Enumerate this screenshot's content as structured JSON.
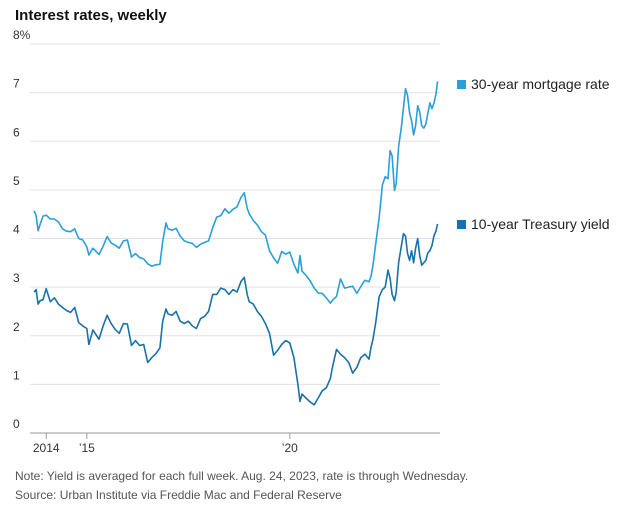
{
  "chart_data": {
    "type": "line",
    "title": "Interest rates, weekly",
    "xlabel": "",
    "ylabel": "",
    "ylim": [
      0,
      8
    ],
    "xlim": [
      2013.6,
      2023.7
    ],
    "grid": true,
    "legend": "right",
    "y_ticks": [
      {
        "value": 0,
        "label": "0"
      },
      {
        "value": 1,
        "label": "1"
      },
      {
        "value": 2,
        "label": "2"
      },
      {
        "value": 3,
        "label": "3"
      },
      {
        "value": 4,
        "label": "4"
      },
      {
        "value": 5,
        "label": "5"
      },
      {
        "value": 6,
        "label": "6"
      },
      {
        "value": 7,
        "label": "7"
      },
      {
        "value": 8,
        "label": "8%"
      }
    ],
    "x_ticks": [
      {
        "value": 2014,
        "label": "2014"
      },
      {
        "value": 2015,
        "label": "’15"
      },
      {
        "value": 2020,
        "label": "’20"
      }
    ],
    "series": [
      {
        "name": "30-year mortgage rate",
        "color": "#2a9fd8",
        "points": [
          [
            2013.7,
            4.57
          ],
          [
            2013.75,
            4.47
          ],
          [
            2013.8,
            4.16
          ],
          [
            2013.85,
            4.29
          ],
          [
            2013.92,
            4.46
          ],
          [
            2014.0,
            4.48
          ],
          [
            2014.1,
            4.4
          ],
          [
            2014.2,
            4.4
          ],
          [
            2014.3,
            4.34
          ],
          [
            2014.4,
            4.2
          ],
          [
            2014.5,
            4.15
          ],
          [
            2014.6,
            4.14
          ],
          [
            2014.7,
            4.2
          ],
          [
            2014.8,
            4.0
          ],
          [
            2014.9,
            3.97
          ],
          [
            2015.0,
            3.83
          ],
          [
            2015.05,
            3.66
          ],
          [
            2015.15,
            3.8
          ],
          [
            2015.3,
            3.67
          ],
          [
            2015.4,
            3.84
          ],
          [
            2015.5,
            4.04
          ],
          [
            2015.6,
            3.91
          ],
          [
            2015.7,
            3.86
          ],
          [
            2015.8,
            3.8
          ],
          [
            2015.9,
            3.95
          ],
          [
            2016.0,
            3.97
          ],
          [
            2016.1,
            3.62
          ],
          [
            2016.2,
            3.69
          ],
          [
            2016.3,
            3.61
          ],
          [
            2016.4,
            3.58
          ],
          [
            2016.5,
            3.48
          ],
          [
            2016.6,
            3.43
          ],
          [
            2016.7,
            3.46
          ],
          [
            2016.8,
            3.47
          ],
          [
            2016.87,
            3.94
          ],
          [
            2016.95,
            4.32
          ],
          [
            2017.0,
            4.2
          ],
          [
            2017.1,
            4.17
          ],
          [
            2017.2,
            4.21
          ],
          [
            2017.3,
            4.05
          ],
          [
            2017.4,
            3.95
          ],
          [
            2017.5,
            3.92
          ],
          [
            2017.6,
            3.9
          ],
          [
            2017.7,
            3.82
          ],
          [
            2017.8,
            3.88
          ],
          [
            2017.9,
            3.92
          ],
          [
            2018.0,
            3.95
          ],
          [
            2018.1,
            4.22
          ],
          [
            2018.2,
            4.44
          ],
          [
            2018.3,
            4.47
          ],
          [
            2018.4,
            4.61
          ],
          [
            2018.5,
            4.52
          ],
          [
            2018.6,
            4.6
          ],
          [
            2018.7,
            4.65
          ],
          [
            2018.8,
            4.85
          ],
          [
            2018.88,
            4.94
          ],
          [
            2018.95,
            4.62
          ],
          [
            2019.0,
            4.51
          ],
          [
            2019.1,
            4.37
          ],
          [
            2019.2,
            4.28
          ],
          [
            2019.3,
            4.14
          ],
          [
            2019.4,
            4.07
          ],
          [
            2019.5,
            3.75
          ],
          [
            2019.6,
            3.6
          ],
          [
            2019.7,
            3.49
          ],
          [
            2019.8,
            3.73
          ],
          [
            2019.9,
            3.68
          ],
          [
            2020.0,
            3.72
          ],
          [
            2020.1,
            3.47
          ],
          [
            2020.2,
            3.29
          ],
          [
            2020.25,
            3.65
          ],
          [
            2020.3,
            3.33
          ],
          [
            2020.4,
            3.24
          ],
          [
            2020.5,
            3.13
          ],
          [
            2020.6,
            2.98
          ],
          [
            2020.7,
            2.88
          ],
          [
            2020.8,
            2.87
          ],
          [
            2020.9,
            2.78
          ],
          [
            2021.0,
            2.67
          ],
          [
            2021.05,
            2.73
          ],
          [
            2021.15,
            2.81
          ],
          [
            2021.25,
            3.17
          ],
          [
            2021.35,
            2.98
          ],
          [
            2021.45,
            3.0
          ],
          [
            2021.55,
            3.02
          ],
          [
            2021.65,
            2.87
          ],
          [
            2021.75,
            3.01
          ],
          [
            2021.85,
            3.14
          ],
          [
            2021.95,
            3.11
          ],
          [
            2022.0,
            3.22
          ],
          [
            2022.05,
            3.45
          ],
          [
            2022.12,
            3.92
          ],
          [
            2022.2,
            4.42
          ],
          [
            2022.28,
            5.1
          ],
          [
            2022.35,
            5.27
          ],
          [
            2022.42,
            5.23
          ],
          [
            2022.47,
            5.81
          ],
          [
            2022.52,
            5.7
          ],
          [
            2022.58,
            4.99
          ],
          [
            2022.62,
            5.13
          ],
          [
            2022.68,
            5.89
          ],
          [
            2022.75,
            6.29
          ],
          [
            2022.8,
            6.7
          ],
          [
            2022.85,
            7.08
          ],
          [
            2022.9,
            6.95
          ],
          [
            2022.95,
            6.58
          ],
          [
            2023.0,
            6.42
          ],
          [
            2023.05,
            6.13
          ],
          [
            2023.1,
            6.32
          ],
          [
            2023.15,
            6.73
          ],
          [
            2023.2,
            6.6
          ],
          [
            2023.25,
            6.32
          ],
          [
            2023.3,
            6.27
          ],
          [
            2023.35,
            6.35
          ],
          [
            2023.4,
            6.57
          ],
          [
            2023.45,
            6.79
          ],
          [
            2023.5,
            6.67
          ],
          [
            2023.55,
            6.78
          ],
          [
            2023.6,
            6.96
          ],
          [
            2023.64,
            7.23
          ]
        ]
      },
      {
        "name": "10-year Treasury yield",
        "color": "#1872a8",
        "points": [
          [
            2013.7,
            2.9
          ],
          [
            2013.75,
            2.95
          ],
          [
            2013.8,
            2.65
          ],
          [
            2013.85,
            2.72
          ],
          [
            2013.92,
            2.74
          ],
          [
            2014.0,
            2.97
          ],
          [
            2014.1,
            2.7
          ],
          [
            2014.2,
            2.78
          ],
          [
            2014.3,
            2.65
          ],
          [
            2014.4,
            2.58
          ],
          [
            2014.5,
            2.52
          ],
          [
            2014.6,
            2.48
          ],
          [
            2014.7,
            2.58
          ],
          [
            2014.8,
            2.27
          ],
          [
            2014.9,
            2.2
          ],
          [
            2015.0,
            2.15
          ],
          [
            2015.05,
            1.82
          ],
          [
            2015.15,
            2.12
          ],
          [
            2015.3,
            1.93
          ],
          [
            2015.4,
            2.2
          ],
          [
            2015.5,
            2.42
          ],
          [
            2015.6,
            2.25
          ],
          [
            2015.7,
            2.13
          ],
          [
            2015.8,
            2.05
          ],
          [
            2015.9,
            2.25
          ],
          [
            2016.0,
            2.24
          ],
          [
            2016.1,
            1.8
          ],
          [
            2016.2,
            1.9
          ],
          [
            2016.3,
            1.8
          ],
          [
            2016.4,
            1.82
          ],
          [
            2016.5,
            1.45
          ],
          [
            2016.6,
            1.55
          ],
          [
            2016.7,
            1.63
          ],
          [
            2016.8,
            1.75
          ],
          [
            2016.87,
            2.3
          ],
          [
            2016.95,
            2.55
          ],
          [
            2017.0,
            2.45
          ],
          [
            2017.1,
            2.42
          ],
          [
            2017.2,
            2.5
          ],
          [
            2017.3,
            2.3
          ],
          [
            2017.4,
            2.25
          ],
          [
            2017.5,
            2.3
          ],
          [
            2017.6,
            2.2
          ],
          [
            2017.7,
            2.15
          ],
          [
            2017.8,
            2.35
          ],
          [
            2017.9,
            2.4
          ],
          [
            2018.0,
            2.5
          ],
          [
            2018.1,
            2.85
          ],
          [
            2018.2,
            2.85
          ],
          [
            2018.3,
            2.98
          ],
          [
            2018.4,
            2.95
          ],
          [
            2018.5,
            2.85
          ],
          [
            2018.6,
            2.95
          ],
          [
            2018.7,
            2.9
          ],
          [
            2018.8,
            3.12
          ],
          [
            2018.88,
            3.2
          ],
          [
            2018.95,
            2.85
          ],
          [
            2019.0,
            2.7
          ],
          [
            2019.1,
            2.65
          ],
          [
            2019.2,
            2.5
          ],
          [
            2019.3,
            2.4
          ],
          [
            2019.4,
            2.25
          ],
          [
            2019.5,
            2.05
          ],
          [
            2019.6,
            1.6
          ],
          [
            2019.7,
            1.7
          ],
          [
            2019.8,
            1.82
          ],
          [
            2019.9,
            1.9
          ],
          [
            2020.0,
            1.85
          ],
          [
            2020.1,
            1.55
          ],
          [
            2020.2,
            1.0
          ],
          [
            2020.25,
            0.65
          ],
          [
            2020.3,
            0.8
          ],
          [
            2020.4,
            0.72
          ],
          [
            2020.5,
            0.64
          ],
          [
            2020.6,
            0.58
          ],
          [
            2020.7,
            0.72
          ],
          [
            2020.8,
            0.87
          ],
          [
            2020.9,
            0.93
          ],
          [
            2021.0,
            1.12
          ],
          [
            2021.05,
            1.35
          ],
          [
            2021.15,
            1.72
          ],
          [
            2021.25,
            1.62
          ],
          [
            2021.35,
            1.55
          ],
          [
            2021.45,
            1.45
          ],
          [
            2021.55,
            1.23
          ],
          [
            2021.65,
            1.35
          ],
          [
            2021.75,
            1.55
          ],
          [
            2021.85,
            1.62
          ],
          [
            2021.95,
            1.52
          ],
          [
            2022.0,
            1.76
          ],
          [
            2022.05,
            1.93
          ],
          [
            2022.12,
            2.3
          ],
          [
            2022.2,
            2.8
          ],
          [
            2022.28,
            2.95
          ],
          [
            2022.35,
            3.0
          ],
          [
            2022.42,
            3.35
          ],
          [
            2022.47,
            3.18
          ],
          [
            2022.52,
            2.85
          ],
          [
            2022.58,
            2.72
          ],
          [
            2022.62,
            2.9
          ],
          [
            2022.68,
            3.5
          ],
          [
            2022.75,
            3.85
          ],
          [
            2022.8,
            4.1
          ],
          [
            2022.85,
            4.05
          ],
          [
            2022.9,
            3.7
          ],
          [
            2022.95,
            3.55
          ],
          [
            2023.0,
            3.75
          ],
          [
            2023.05,
            3.5
          ],
          [
            2023.1,
            3.8
          ],
          [
            2023.15,
            4.0
          ],
          [
            2023.2,
            3.65
          ],
          [
            2023.25,
            3.45
          ],
          [
            2023.3,
            3.5
          ],
          [
            2023.35,
            3.55
          ],
          [
            2023.4,
            3.7
          ],
          [
            2023.45,
            3.75
          ],
          [
            2023.5,
            3.85
          ],
          [
            2023.55,
            4.05
          ],
          [
            2023.6,
            4.15
          ],
          [
            2023.64,
            4.3
          ]
        ]
      }
    ],
    "notes": [
      "Note: Yield is averaged for each full week. Aug. 24, 2023, rate is through Wednesday.",
      "Source: Urban Institute via Freddie Mac and Federal Reserve"
    ]
  }
}
